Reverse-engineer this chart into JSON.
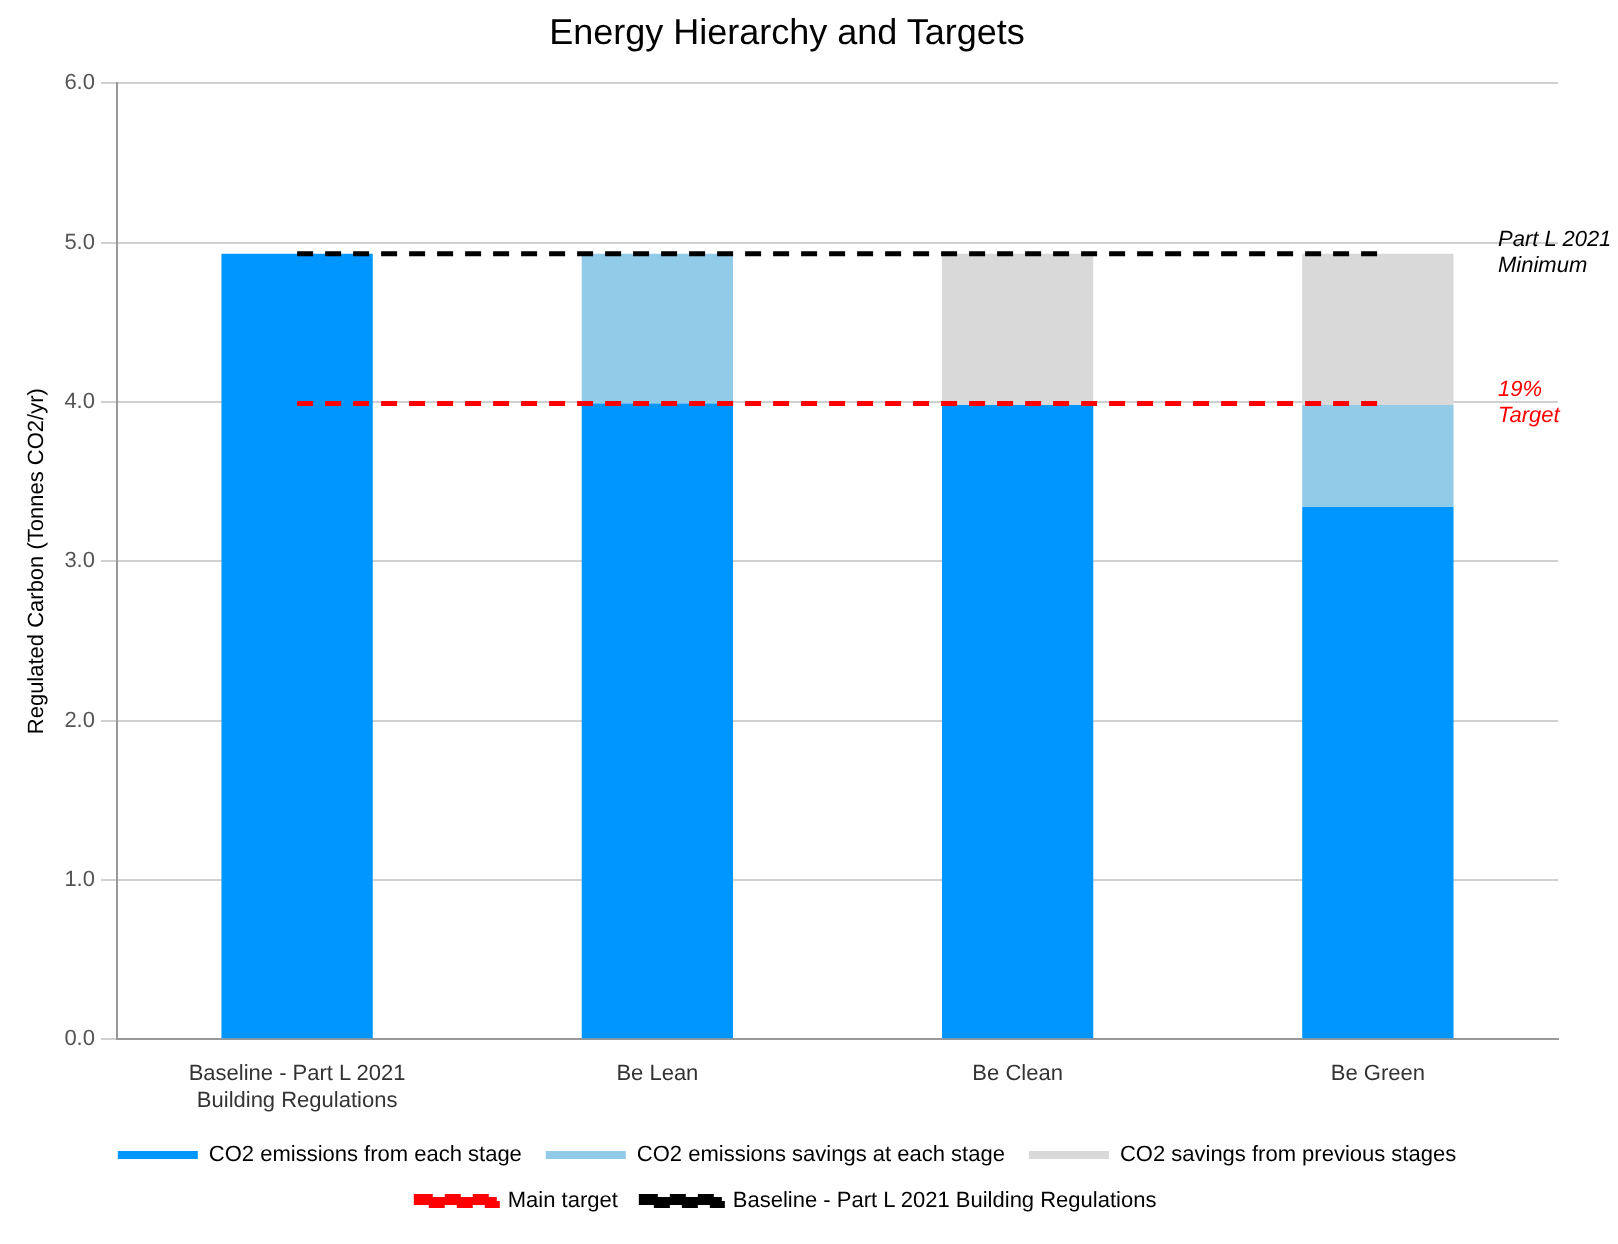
{
  "chart_data": {
    "type": "bar",
    "title": "Energy Hierarchy and Targets",
    "ylabel": "Regulated Carbon (Tonnes CO2/yr)",
    "stacked": true,
    "categories": [
      "Baseline - Part L 2021 Building Regulations",
      "Be Lean",
      "Be Clean",
      "Be Green"
    ],
    "series": [
      {
        "name": "CO2 emissions from each stage",
        "color": "#0096ff",
        "values": [
          4.93,
          3.99,
          3.98,
          3.34
        ]
      },
      {
        "name": "CO2 emissions savings at each stage",
        "color": "#92cbe8",
        "values": [
          0,
          0.94,
          0,
          0.64
        ]
      },
      {
        "name": "CO2 savings from previous stages",
        "color": "#d9d9d9",
        "values": [
          0,
          0,
          0.95,
          0.95
        ]
      },
      {
        "name": "Main target",
        "type": "line",
        "color": "#ff0000",
        "line_style": "dashed",
        "values": [
          3.99,
          3.99,
          3.99,
          3.99
        ]
      },
      {
        "name": "Baseline - Part L 2021 Building Regulations",
        "type": "line",
        "color": "#000000",
        "line_style": "dashed",
        "values": [
          4.93,
          4.93,
          4.93,
          4.93
        ]
      }
    ],
    "ylim": [
      0,
      6
    ],
    "yticks": [
      {
        "value": 0,
        "label": "0.0"
      },
      {
        "value": 1,
        "label": "1.0"
      },
      {
        "value": 2,
        "label": "2.0"
      },
      {
        "value": 3,
        "label": "3.0"
      },
      {
        "value": 4,
        "label": "4.0"
      },
      {
        "value": 5,
        "label": "5.0"
      },
      {
        "value": 6,
        "label": "6.0"
      }
    ],
    "grid": "y",
    "legend": "bottom",
    "marker": "none",
    "annotations": [
      "Part L 2021 Minimum",
      "19% Target"
    ]
  }
}
